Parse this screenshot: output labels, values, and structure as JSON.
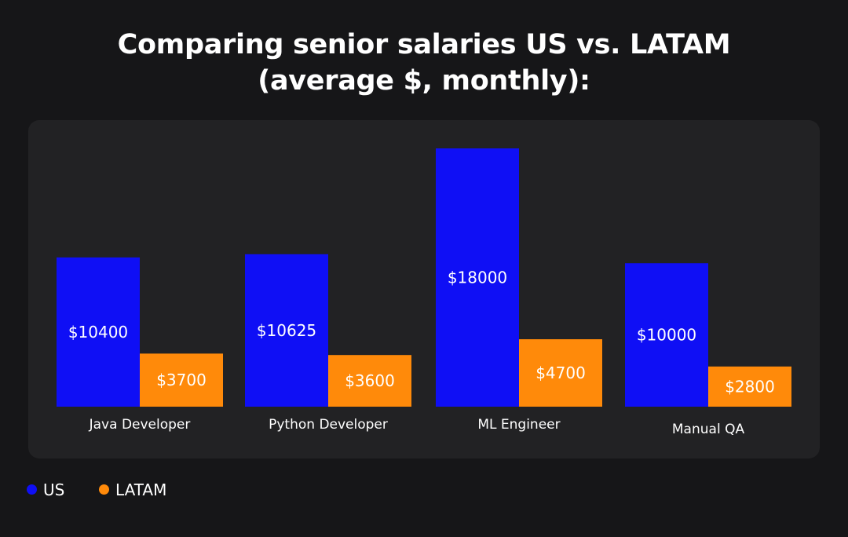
{
  "chart_data": {
    "type": "bar",
    "title_lines": [
      "Comparing senior salaries US vs. LATAM",
      "(average $, monthly):"
    ],
    "categories": [
      "Java Developer",
      "Python Developer",
      "ML Engineer",
      "Manual QA"
    ],
    "series": [
      {
        "name": "US",
        "color": "#0f0ff5",
        "values": [
          10400,
          10625,
          18000,
          10000
        ],
        "labels": [
          "$10400",
          "$10625",
          "$18000",
          "$10000"
        ]
      },
      {
        "name": "LATAM",
        "color": "#ff8a0a",
        "values": [
          3700,
          3600,
          4700,
          2800
        ],
        "labels": [
          "$3700",
          "$3600",
          "$4700",
          "$2800"
        ]
      }
    ],
    "xlabel": "",
    "ylabel": "",
    "ylim": [
      0,
      18000
    ],
    "grid": false,
    "legend": "bottom-left"
  }
}
